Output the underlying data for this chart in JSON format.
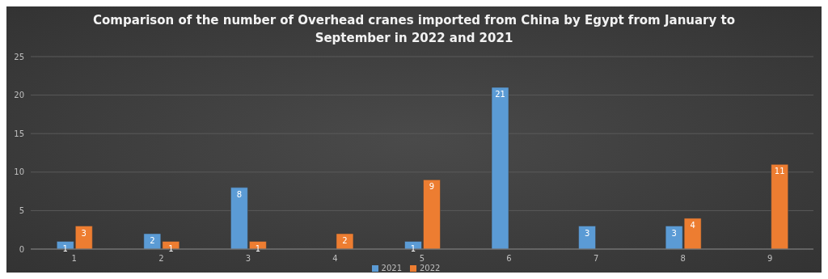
{
  "chart_data": {
    "type": "bar",
    "title": "Comparison of the number of Overhead cranes imported from China by Egypt from January to September in 2022 and 2021",
    "categories": [
      "1",
      "2",
      "3",
      "4",
      "5",
      "6",
      "7",
      "8",
      "9"
    ],
    "series": [
      {
        "name": "2021",
        "color": "#5b9bd5",
        "values": [
          1,
          2,
          8,
          null,
          1,
          21,
          3,
          3,
          null
        ]
      },
      {
        "name": "2022",
        "color": "#ed7d31",
        "values": [
          3,
          1,
          1,
          2,
          9,
          null,
          null,
          4,
          11
        ]
      }
    ],
    "ylim": [
      0,
      25
    ],
    "yticks": [
      0,
      5,
      10,
      15,
      20,
      25
    ],
    "grid": "y",
    "legend": "bottom",
    "data_labels": true
  }
}
